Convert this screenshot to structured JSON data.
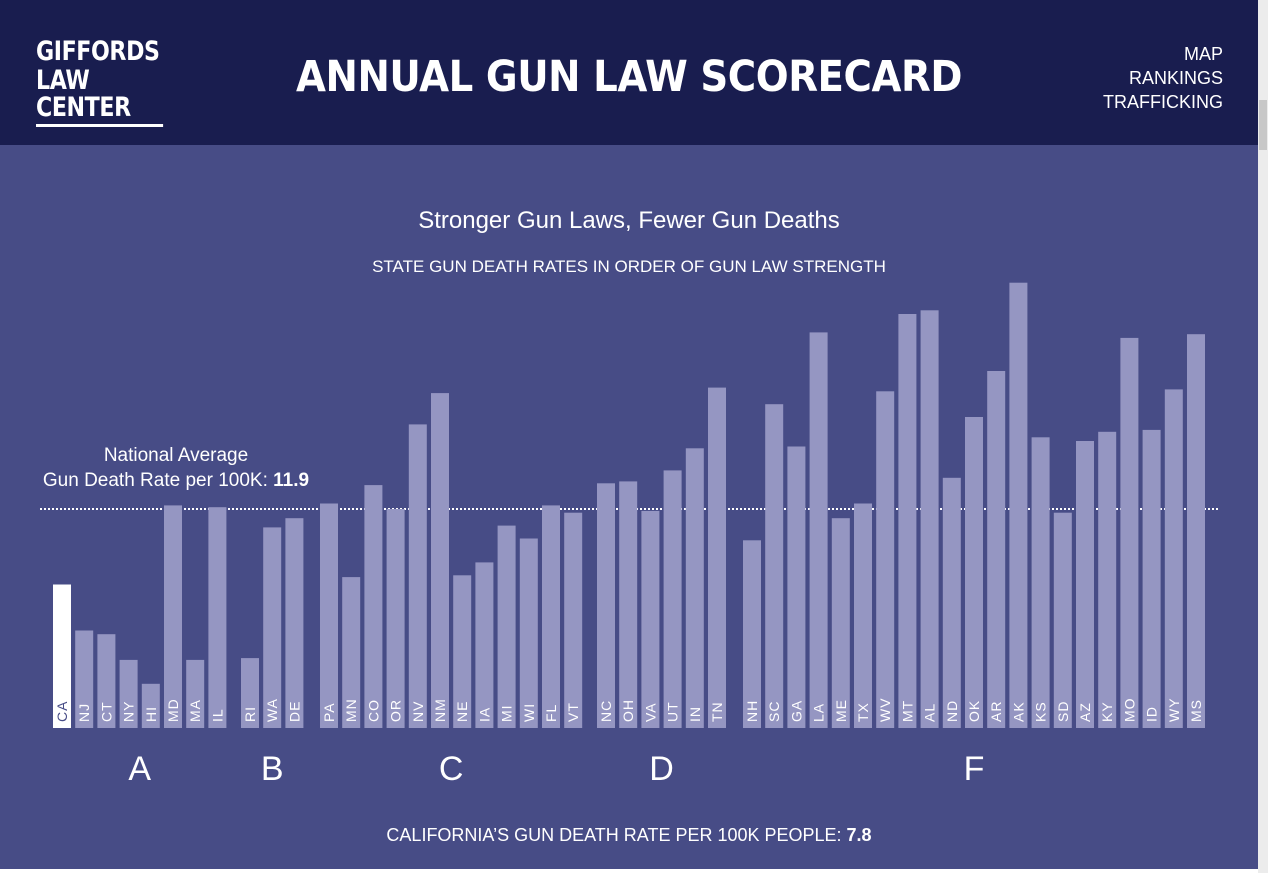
{
  "header": {
    "logo_line1": "GIFFORDS",
    "logo_line2": "LAW CENTER",
    "title": "ANNUAL GUN LAW SCORECARD",
    "nav": [
      "MAP",
      "RANKINGS",
      "TRAFFICKING"
    ]
  },
  "colors": {
    "header_bg": "#191d4f",
    "page_bg": "#474c86",
    "bar": "#9596c2",
    "bar_highlight": "#ffffff"
  },
  "average": {
    "line1": "National Average",
    "line2_prefix": "Gun Death Rate per 100K: ",
    "line2_value": "11.9"
  },
  "footer": {
    "prefix": "CALIFORNIA’S GUN DEATH RATE PER 100K PEOPLE: ",
    "value": "7.8"
  },
  "chart_data": {
    "type": "bar",
    "title": "Stronger Gun Laws, Fewer Gun Deaths",
    "subtitle": "STATE GUN DEATH RATES IN ORDER OF GUN LAW STRENGTH",
    "reference_line": 11.9,
    "highlight": "CA",
    "groups": [
      {
        "grade": "A",
        "states": [
          "CA",
          "NJ",
          "CT",
          "NY",
          "HI",
          "MD",
          "MA",
          "IL"
        ],
        "values": [
          7.8,
          5.3,
          5.1,
          3.7,
          2.4,
          12.1,
          3.7,
          12.0
        ]
      },
      {
        "grade": "B",
        "states": [
          "RI",
          "WA",
          "DE"
        ],
        "values": [
          3.8,
          10.9,
          11.4
        ]
      },
      {
        "grade": "C",
        "states": [
          "PA",
          "MN",
          "CO",
          "OR",
          "NV",
          "NM",
          "NE",
          "IA",
          "MI",
          "WI",
          "FL",
          "VT"
        ],
        "values": [
          12.2,
          8.2,
          13.2,
          11.9,
          16.5,
          18.2,
          8.3,
          9.0,
          11.0,
          10.3,
          12.1,
          11.7
        ]
      },
      {
        "grade": "D",
        "states": [
          "NC",
          "OH",
          "VA",
          "UT",
          "IN",
          "TN"
        ],
        "values": [
          13.3,
          13.4,
          11.8,
          14.0,
          15.2,
          18.5
        ]
      },
      {
        "grade": "F",
        "states": [
          "NH",
          "SC",
          "GA",
          "LA",
          "ME",
          "TX",
          "WV",
          "MT",
          "AL",
          "ND",
          "OK",
          "AR",
          "AK",
          "KS",
          "SD",
          "AZ",
          "KY",
          "MO",
          "ID",
          "WY",
          "MS"
        ],
        "values": [
          10.2,
          17.6,
          15.3,
          21.5,
          11.4,
          12.2,
          18.3,
          22.5,
          22.7,
          13.6,
          16.9,
          19.4,
          24.2,
          15.8,
          11.7,
          15.6,
          16.1,
          21.2,
          16.2,
          18.4,
          21.4
        ]
      }
    ]
  }
}
